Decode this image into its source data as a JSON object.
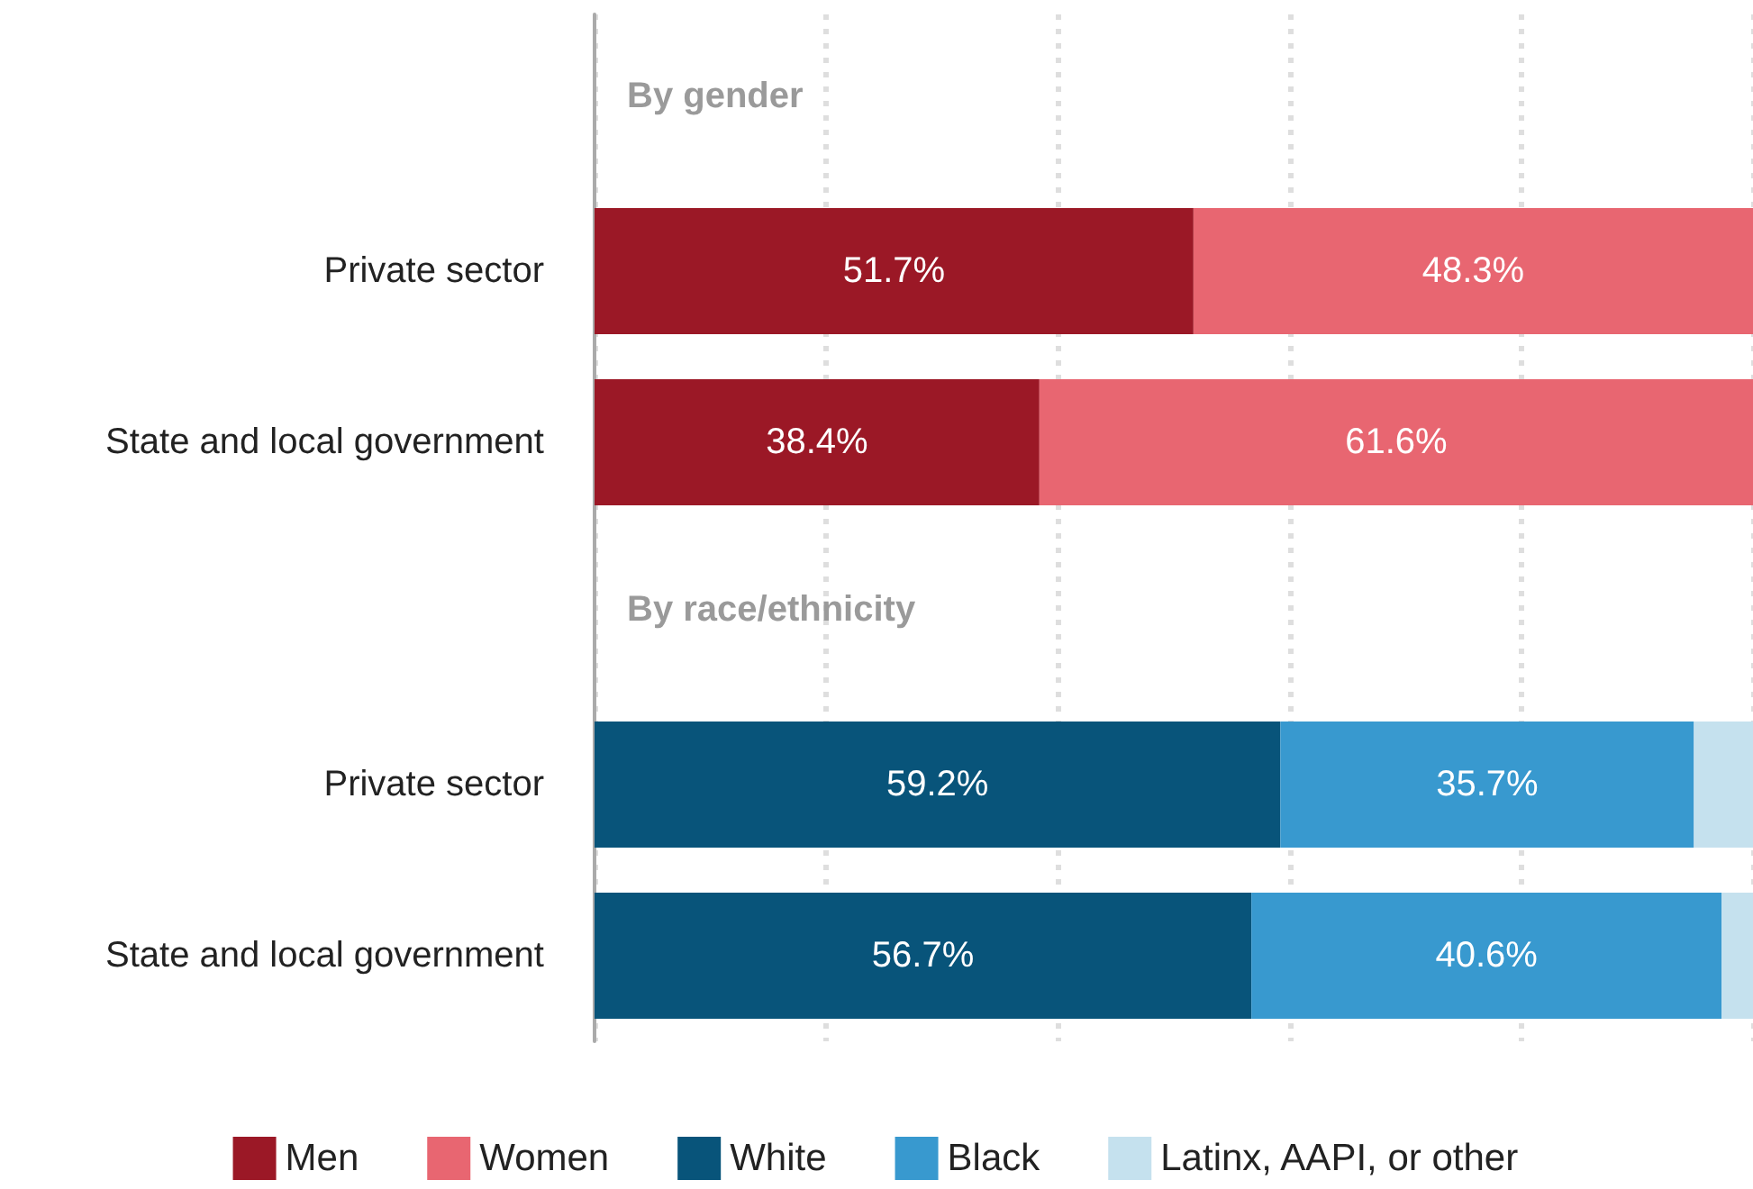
{
  "chart_data": {
    "type": "bar",
    "orientation": "horizontal",
    "stacked": true,
    "categories": [
      null,
      "Private sector",
      "State and local government",
      null,
      "Private sector",
      "State and local government"
    ],
    "annotations": [
      "By gender",
      "By race/ethnicity"
    ],
    "series": [
      {
        "name": "Men",
        "color": "#9b1826",
        "values": [
          null,
          51.7,
          38.4,
          null,
          null,
          null
        ],
        "value_labels": [
          null,
          "51.7%",
          "38.4%",
          null,
          null,
          null
        ]
      },
      {
        "name": "Women",
        "color": "#e86671",
        "values": [
          null,
          48.3,
          61.6,
          null,
          null,
          null
        ],
        "value_labels": [
          null,
          "48.3%",
          "61.6%",
          null,
          null,
          null
        ]
      },
      {
        "name": "White",
        "color": "#08547a",
        "values": [
          null,
          null,
          null,
          null,
          59.2,
          56.7
        ],
        "value_labels": [
          null,
          null,
          null,
          null,
          "59.2%",
          "56.7%"
        ]
      },
      {
        "name": "Black",
        "color": "#3899cf",
        "values": [
          null,
          null,
          null,
          null,
          35.7,
          40.6
        ],
        "value_labels": [
          null,
          null,
          null,
          null,
          "35.7%",
          "40.6%"
        ]
      },
      {
        "name": "Latinx, AAPI, or other",
        "color": "#c5e1ee",
        "values": [
          null,
          null,
          null,
          null,
          5.1,
          2.7
        ]
      }
    ],
    "xlim": [
      0,
      100
    ],
    "xticks": [
      {
        "value": 0,
        "label": null
      },
      {
        "value": 20,
        "label": null
      },
      {
        "value": 40,
        "label": null
      },
      {
        "value": 60,
        "label": null
      },
      {
        "value": 80,
        "label": null
      },
      {
        "value": 100,
        "label": null
      }
    ],
    "grid": "x",
    "legend": "bottom",
    "tick_labels": false
  }
}
